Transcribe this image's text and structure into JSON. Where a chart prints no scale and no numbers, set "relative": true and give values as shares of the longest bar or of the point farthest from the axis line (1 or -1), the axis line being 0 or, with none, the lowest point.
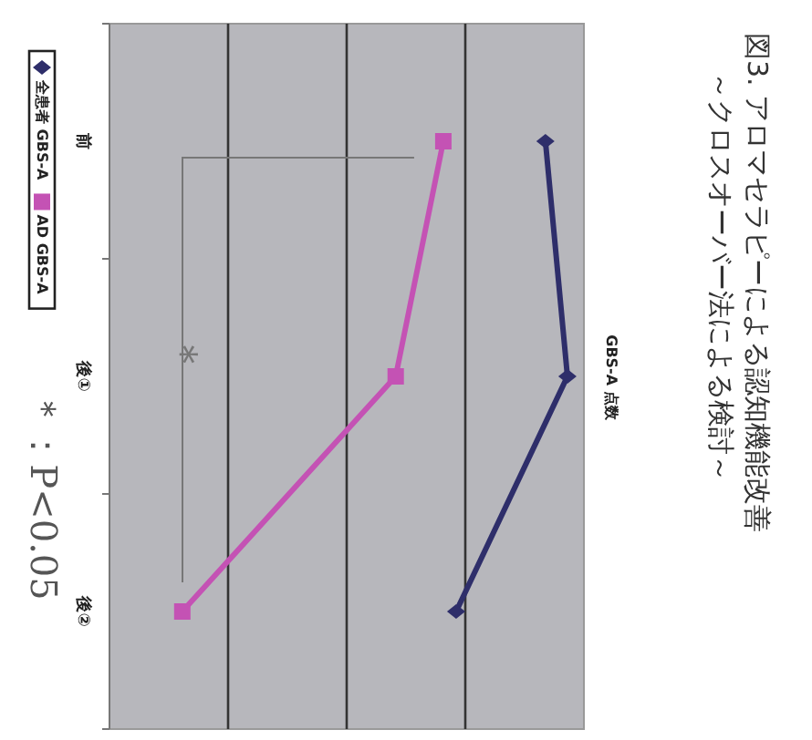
{
  "chart_data": {
    "type": "line",
    "title": "図3. アロマセラピーによる認知機能改善",
    "subtitle": "～クロスオーバー法による検討～",
    "ylabel": "GBS-A 点数",
    "relative": true,
    "orientation": "horizontal",
    "grid": "x",
    "legend": "left",
    "categories": [
      "前",
      "後①",
      "後②"
    ],
    "series": [
      {
        "name": "全患者 GBS-A",
        "color": "#2e2e6a",
        "marker": "diamond",
        "values": [
          0.952,
          1,
          0.757
        ]
      },
      {
        "name": "AD GBS-A",
        "color": "#c452b4",
        "marker": "square",
        "values": [
          0.729,
          0.625,
          0.159
        ]
      }
    ],
    "annotations": [
      "＊",
      "＊：P<0.05"
    ]
  }
}
